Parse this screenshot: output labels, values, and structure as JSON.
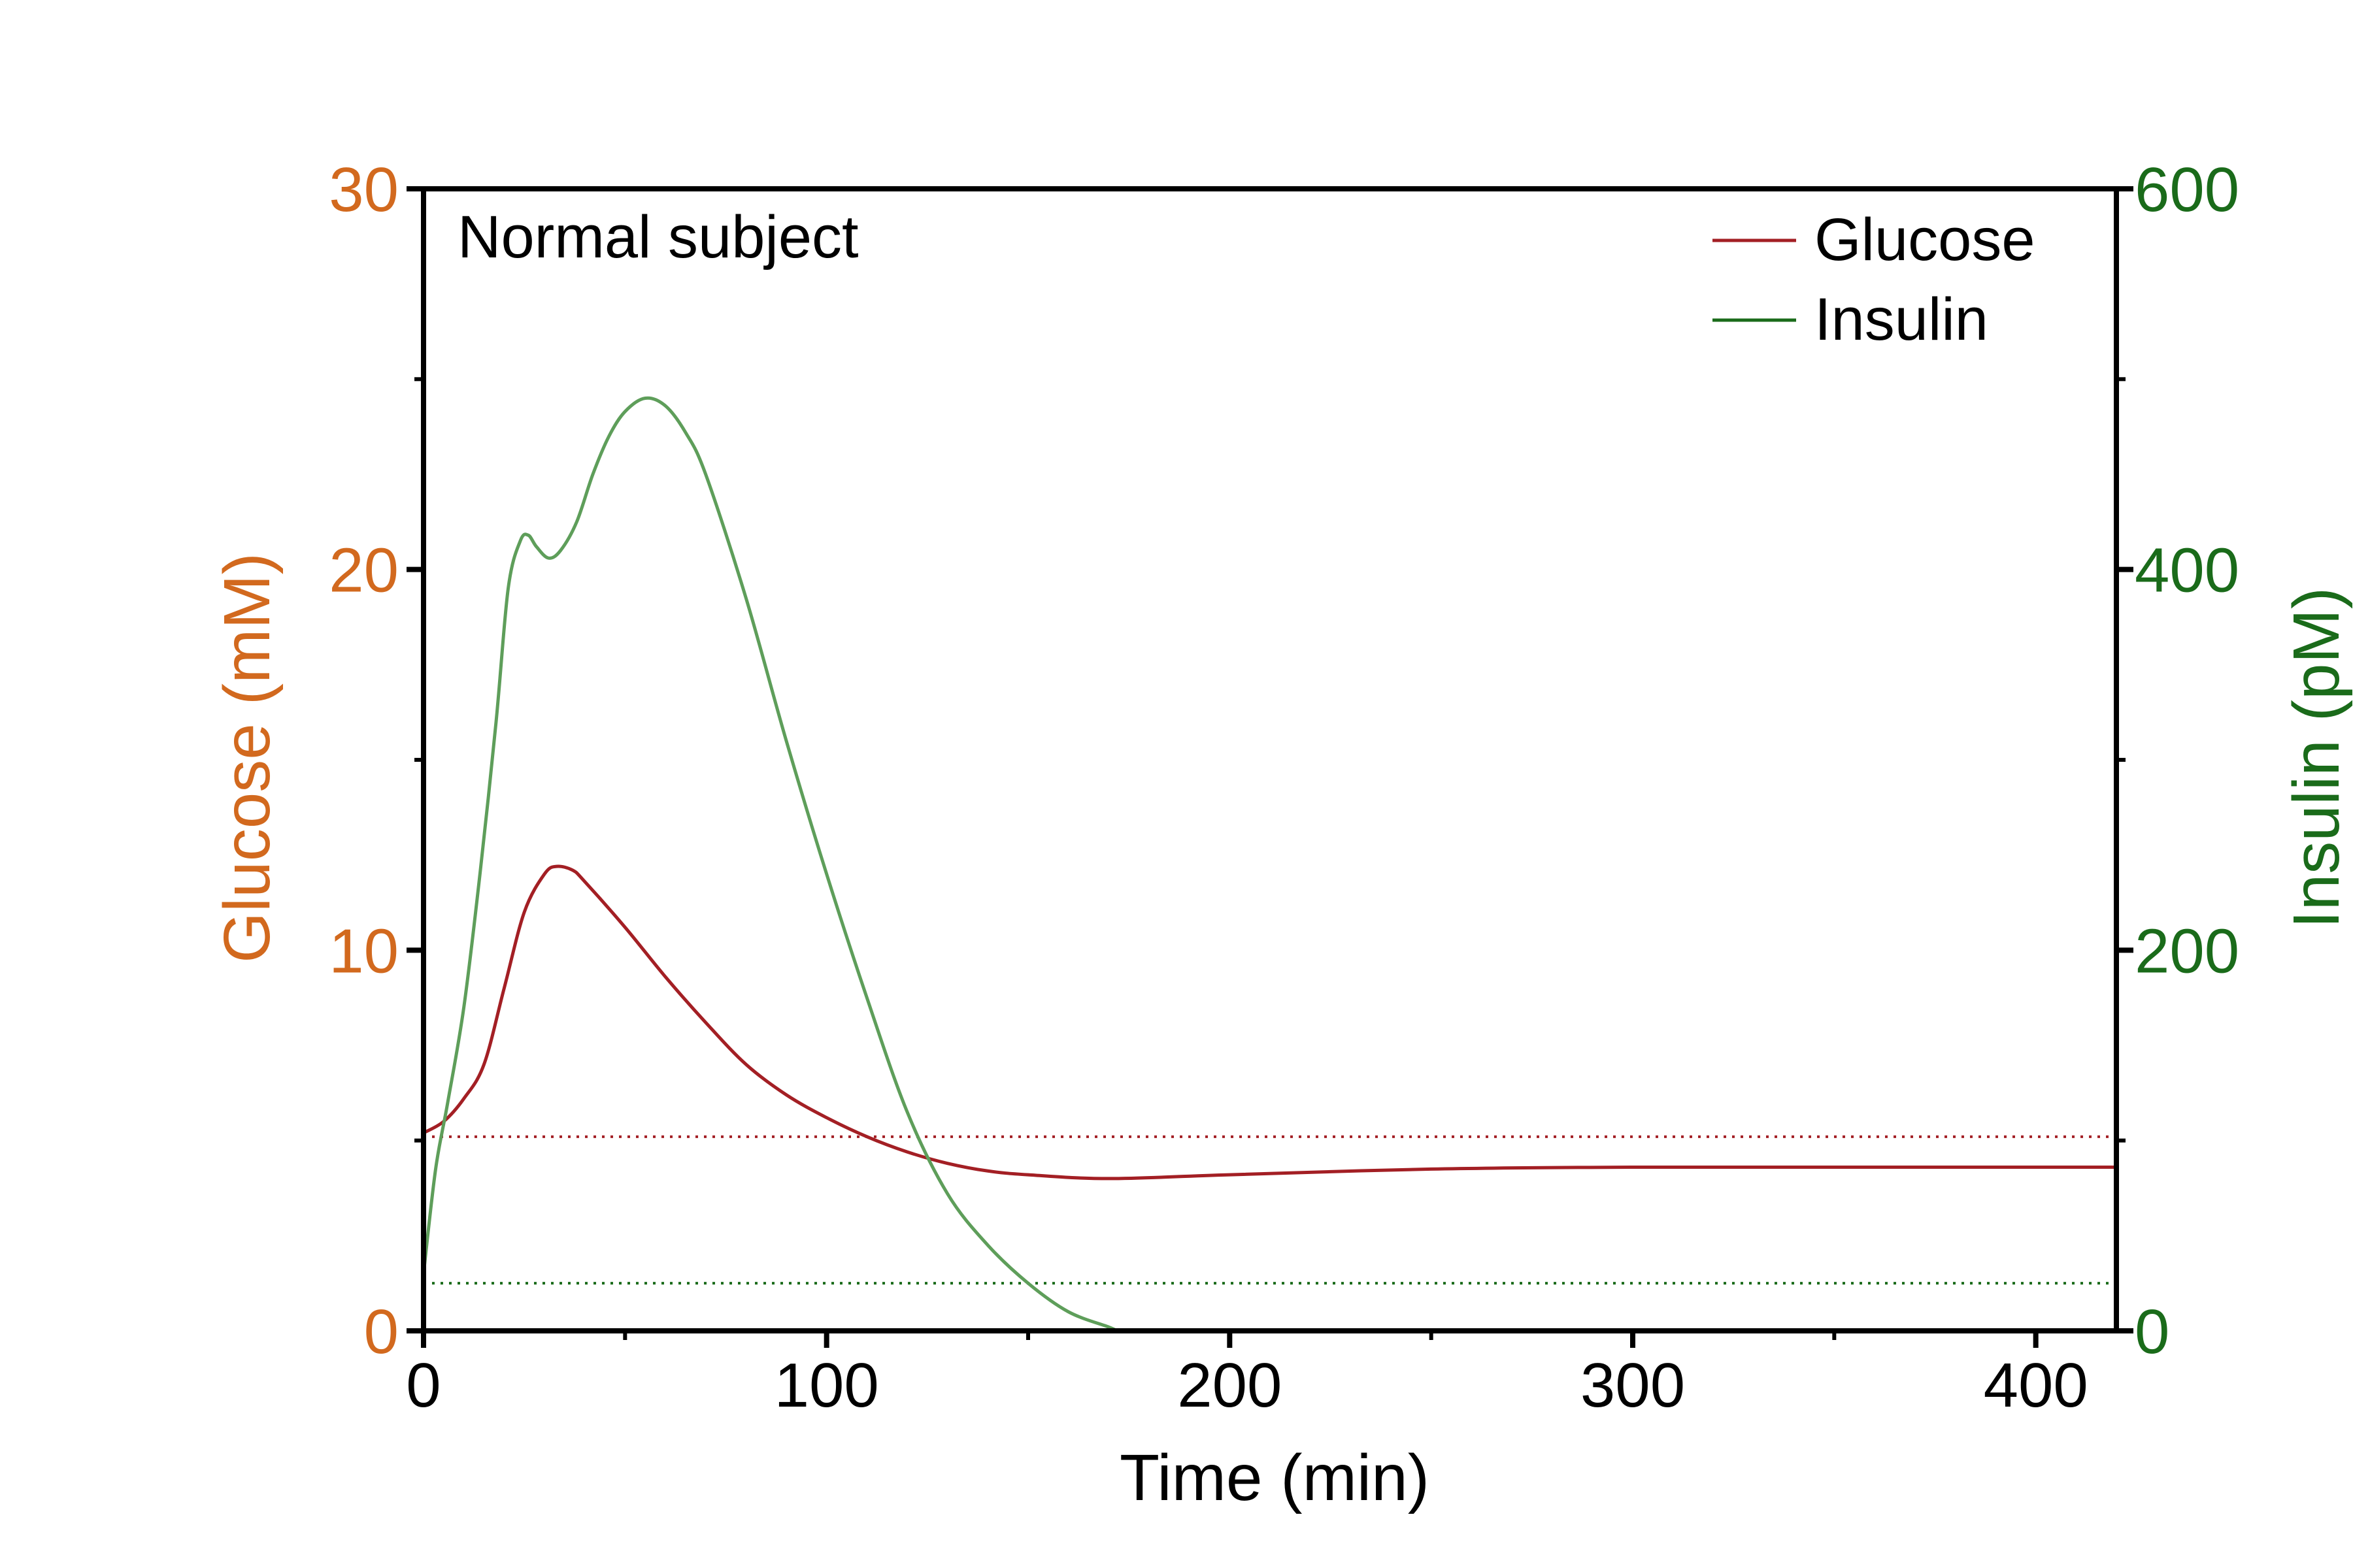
{
  "chart_data": {
    "type": "line",
    "title": "",
    "annotation": "Normal subject",
    "xlabel": "Time (min)",
    "ylabel_left": "Glucose (mM)",
    "ylabel_right": "Insulin (pM)",
    "xlim": [
      0,
      420
    ],
    "ylim_left": [
      0,
      30
    ],
    "ylim_right": [
      0,
      600
    ],
    "x_ticks": [
      "0",
      "100",
      "200",
      "300",
      "400"
    ],
    "x_tick_values": [
      0,
      100,
      200,
      300,
      400
    ],
    "x_minor_tick_values": [
      50,
      150,
      250,
      350
    ],
    "y_left_ticks": [
      "0",
      "10",
      "20",
      "30"
    ],
    "y_left_tick_values": [
      0,
      10,
      20,
      30
    ],
    "y_left_minor_tick_values": [
      5,
      15,
      25
    ],
    "y_right_ticks": [
      "0",
      "200",
      "400",
      "600"
    ],
    "y_right_tick_values": [
      0,
      200,
      400,
      600
    ],
    "y_right_minor_tick_values": [
      100,
      300,
      500
    ],
    "grid": false,
    "legend_position": "top-right",
    "colors": {
      "glucose": "#a31f24",
      "insulin": "#5e9e5a",
      "left_axis": "#d2691e",
      "right_axis": "#1a6b1a",
      "glucose_baseline": "#a31f24",
      "insulin_baseline": "#1a6b1a"
    },
    "series": [
      {
        "name": "Glucose",
        "axis": "left",
        "x": [
          0,
          5,
          10,
          15,
          20,
          25,
          30,
          33,
          37,
          40,
          50,
          60,
          70,
          80,
          90,
          100,
          110,
          120,
          130,
          140,
          150,
          170,
          200,
          250,
          300,
          350,
          400,
          420
        ],
        "y": [
          5.2,
          5.5,
          6.1,
          7.0,
          9.0,
          11.0,
          12.0,
          12.2,
          12.1,
          11.8,
          10.6,
          9.3,
          8.1,
          7.0,
          6.2,
          5.6,
          5.1,
          4.7,
          4.4,
          4.2,
          4.1,
          4.0,
          4.1,
          4.25,
          4.3,
          4.3,
          4.3,
          4.3
        ]
      },
      {
        "name": "Insulin",
        "axis": "right",
        "x": [
          0,
          3,
          6,
          10,
          14,
          18,
          21,
          24,
          26,
          28,
          31,
          34,
          38,
          42,
          46,
          50,
          55,
          60,
          65,
          70,
          80,
          90,
          100,
          110,
          120,
          130,
          140,
          150,
          160,
          170,
          172
        ],
        "y": [
          30,
          85,
          120,
          170,
          240,
          320,
          390,
          415,
          418,
          412,
          406,
          410,
          425,
          450,
          470,
          483,
          490,
          486,
          472,
          450,
          385,
          310,
          240,
          175,
          115,
          72,
          45,
          25,
          10,
          2,
          0
        ]
      }
    ],
    "baselines": [
      {
        "series": "Glucose",
        "axis": "left",
        "value": 5.1,
        "style": "dotted"
      },
      {
        "series": "Insulin",
        "axis": "right",
        "value": 25,
        "style": "dotted"
      }
    ]
  }
}
